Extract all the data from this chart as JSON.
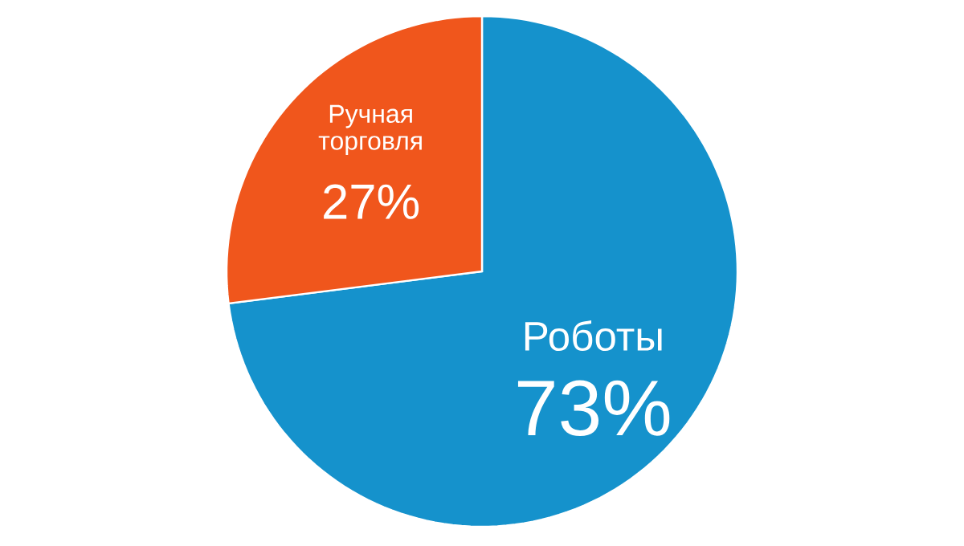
{
  "chart_data": {
    "type": "pie",
    "categories": [
      "Роботы",
      "Ручная торговля"
    ],
    "values": [
      73,
      27
    ],
    "colors": [
      "#1592cc",
      "#f0561c"
    ],
    "value_labels": [
      "73%",
      "27%"
    ]
  }
}
